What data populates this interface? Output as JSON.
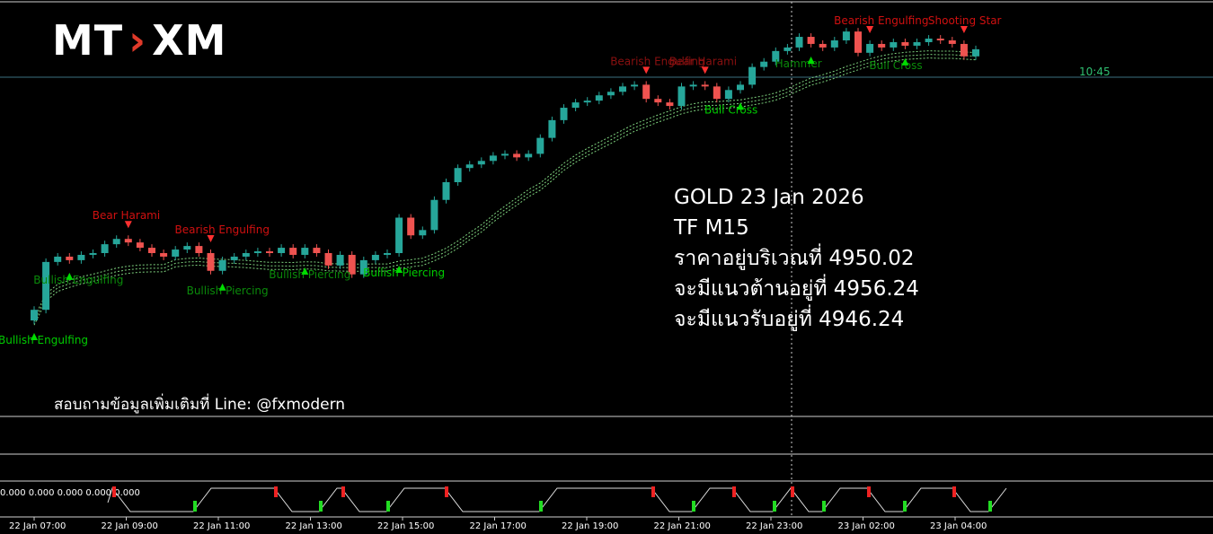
{
  "logo": {
    "left": "MT",
    "right": "XM"
  },
  "info": {
    "line1": "GOLD 23 Jan 2026",
    "line2": "TF M15",
    "line3": "ราคาอยู่บริเวณที่ 4950.02",
    "line4": "จะมีแนวต้านอยู่ที่ 4956.24",
    "line5": "จะมีแนวรับอยู่ที่ 4946.24"
  },
  "contact": "สอบถามข้อมูลเพิ่มเติมที่ Line: @fxmodern",
  "current_time_label": "10:45",
  "indicator_values": "0.000 0.000 0.000 0.000 0.000",
  "colors": {
    "up": "#26a69a",
    "down": "#ef5350",
    "bull_label": "#00cc00",
    "bear_label": "#d01010",
    "ma": "#7fd37f"
  },
  "chart_data": {
    "type": "candlestick",
    "symbol": "GOLD",
    "timeframe": "M15",
    "x_tick_labels": [
      "22 Jan 07:00",
      "22 Jan 09:00",
      "22 Jan 11:00",
      "22 Jan 13:00",
      "22 Jan 15:00",
      "22 Jan 17:00",
      "22 Jan 19:00",
      "22 Jan 21:00",
      "22 Jan 23:00",
      "23 Jan 02:00",
      "23 Jan 04:00"
    ],
    "ylim": [
      4770,
      4970
    ],
    "candles": [
      {
        "o": 4812,
        "c": 4818
      },
      {
        "o": 4818,
        "c": 4845
      },
      {
        "o": 4845,
        "c": 4848
      },
      {
        "o": 4848,
        "c": 4846
      },
      {
        "o": 4846,
        "c": 4849
      },
      {
        "o": 4849,
        "c": 4850
      },
      {
        "o": 4850,
        "c": 4855
      },
      {
        "o": 4855,
        "c": 4858
      },
      {
        "o": 4858,
        "c": 4856
      },
      {
        "o": 4856,
        "c": 4853
      },
      {
        "o": 4853,
        "c": 4850
      },
      {
        "o": 4850,
        "c": 4848
      },
      {
        "o": 4848,
        "c": 4852
      },
      {
        "o": 4852,
        "c": 4854
      },
      {
        "o": 4854,
        "c": 4850
      },
      {
        "o": 4850,
        "c": 4840
      },
      {
        "o": 4840,
        "c": 4846
      },
      {
        "o": 4846,
        "c": 4848
      },
      {
        "o": 4848,
        "c": 4850
      },
      {
        "o": 4850,
        "c": 4851
      },
      {
        "o": 4851,
        "c": 4850
      },
      {
        "o": 4850,
        "c": 4853
      },
      {
        "o": 4853,
        "c": 4849
      },
      {
        "o": 4849,
        "c": 4853
      },
      {
        "o": 4853,
        "c": 4850
      },
      {
        "o": 4850,
        "c": 4843
      },
      {
        "o": 4843,
        "c": 4849
      },
      {
        "o": 4849,
        "c": 4838
      },
      {
        "o": 4838,
        "c": 4846
      },
      {
        "o": 4846,
        "c": 4849
      },
      {
        "o": 4849,
        "c": 4850
      },
      {
        "o": 4850,
        "c": 4870
      },
      {
        "o": 4870,
        "c": 4860
      },
      {
        "o": 4860,
        "c": 4863
      },
      {
        "o": 4863,
        "c": 4880
      },
      {
        "o": 4880,
        "c": 4890
      },
      {
        "o": 4890,
        "c": 4898
      },
      {
        "o": 4898,
        "c": 4900
      },
      {
        "o": 4900,
        "c": 4902
      },
      {
        "o": 4902,
        "c": 4905
      },
      {
        "o": 4905,
        "c": 4906
      },
      {
        "o": 4906,
        "c": 4904
      },
      {
        "o": 4904,
        "c": 4906
      },
      {
        "o": 4906,
        "c": 4915
      },
      {
        "o": 4915,
        "c": 4925
      },
      {
        "o": 4925,
        "c": 4932
      },
      {
        "o": 4932,
        "c": 4935
      },
      {
        "o": 4935,
        "c": 4936
      },
      {
        "o": 4936,
        "c": 4939
      },
      {
        "o": 4939,
        "c": 4941
      },
      {
        "o": 4941,
        "c": 4944
      },
      {
        "o": 4944,
        "c": 4945
      },
      {
        "o": 4945,
        "c": 4937
      },
      {
        "o": 4937,
        "c": 4935
      },
      {
        "o": 4935,
        "c": 4933
      },
      {
        "o": 4933,
        "c": 4944
      },
      {
        "o": 4944,
        "c": 4945
      },
      {
        "o": 4945,
        "c": 4944
      },
      {
        "o": 4944,
        "c": 4937
      },
      {
        "o": 4937,
        "c": 4942
      },
      {
        "o": 4942,
        "c": 4945
      },
      {
        "o": 4945,
        "c": 4955
      },
      {
        "o": 4955,
        "c": 4958
      },
      {
        "o": 4958,
        "c": 4964
      },
      {
        "o": 4964,
        "c": 4966
      },
      {
        "o": 4966,
        "c": 4972
      },
      {
        "o": 4972,
        "c": 4968
      },
      {
        "o": 4968,
        "c": 4966
      },
      {
        "o": 4966,
        "c": 4970
      },
      {
        "o": 4970,
        "c": 4975
      },
      {
        "o": 4975,
        "c": 4963
      },
      {
        "o": 4963,
        "c": 4968
      },
      {
        "o": 4968,
        "c": 4966
      },
      {
        "o": 4966,
        "c": 4969
      },
      {
        "o": 4969,
        "c": 4967
      },
      {
        "o": 4967,
        "c": 4969
      },
      {
        "o": 4969,
        "c": 4971
      },
      {
        "o": 4971,
        "c": 4970
      },
      {
        "o": 4970,
        "c": 4968
      },
      {
        "o": 4968,
        "c": 4961
      },
      {
        "o": 4961,
        "c": 4965
      }
    ],
    "annotations": [
      {
        "label": "Bullish Engulfing",
        "type": "bull",
        "bright": true
      },
      {
        "label": "Bullish Engulfing",
        "type": "bull",
        "bright": false
      },
      {
        "label": "Bear Harami",
        "type": "bear",
        "bright": true
      },
      {
        "label": "Bearish Engulfing",
        "type": "bear",
        "bright": true
      },
      {
        "label": "Bullish Piercing",
        "type": "bull",
        "bright": false
      },
      {
        "label": "Bullish Piercing",
        "type": "bull",
        "bright": false
      },
      {
        "label": "Bullish Piercing",
        "type": "bull",
        "bright": true
      },
      {
        "label": "Bearish Engulfing",
        "type": "bear",
        "bright": false
      },
      {
        "label": "Bear Harami",
        "type": "bear",
        "bright": false
      },
      {
        "label": "Bull Cross",
        "type": "bull",
        "bright": true
      },
      {
        "label": "Hammer",
        "type": "bull",
        "bright": false
      },
      {
        "label": "Bearish Engulfing",
        "type": "bear",
        "bright": true
      },
      {
        "label": "Bull Cross",
        "type": "bull",
        "bright": false
      },
      {
        "label": "Shooting Star",
        "type": "bear",
        "bright": true
      }
    ]
  }
}
